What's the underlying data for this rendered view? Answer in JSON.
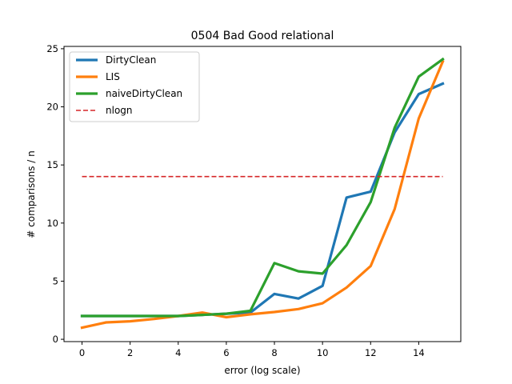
{
  "chart_data": {
    "type": "line",
    "title": "0504 Bad Good relational",
    "xlabel": "error (log scale)",
    "ylabel": "# comparisons / n",
    "xlim": [
      -0.75,
      15.75
    ],
    "ylim": [
      -0.2,
      25.2
    ],
    "xticks": [
      0,
      2,
      4,
      6,
      8,
      10,
      12,
      14
    ],
    "yticks": [
      0,
      5,
      10,
      15,
      20,
      25
    ],
    "grid": false,
    "legend_position": "top-left",
    "x": [
      0,
      1,
      2,
      3,
      4,
      5,
      6,
      7,
      8,
      9,
      10,
      11,
      12,
      13,
      14,
      15
    ],
    "series": [
      {
        "name": "DirtyClean",
        "color": "#1f77b4",
        "style": "solid",
        "values": [
          2.0,
          2.0,
          2.0,
          2.0,
          2.0,
          2.1,
          2.2,
          2.3,
          3.9,
          3.5,
          4.6,
          12.2,
          12.7,
          17.8,
          21.1,
          22.0
        ]
      },
      {
        "name": "LIS",
        "color": "#ff7f0e",
        "style": "solid",
        "values": [
          1.0,
          1.45,
          1.55,
          1.75,
          2.0,
          2.3,
          1.9,
          2.15,
          2.35,
          2.6,
          3.1,
          4.45,
          6.3,
          11.2,
          19.0,
          23.9
        ]
      },
      {
        "name": "naiveDirtyClean",
        "color": "#2ca02c",
        "style": "solid",
        "values": [
          2.0,
          2.0,
          2.0,
          2.0,
          2.0,
          2.1,
          2.2,
          2.45,
          6.55,
          5.85,
          5.65,
          8.1,
          11.8,
          18.2,
          22.6,
          24.1
        ]
      },
      {
        "name": "nlogn",
        "color": "#d62728",
        "style": "dashed",
        "values": [
          14.0,
          14.0,
          14.0,
          14.0,
          14.0,
          14.0,
          14.0,
          14.0,
          14.0,
          14.0,
          14.0,
          14.0,
          14.0,
          14.0,
          14.0,
          14.0
        ]
      }
    ]
  }
}
